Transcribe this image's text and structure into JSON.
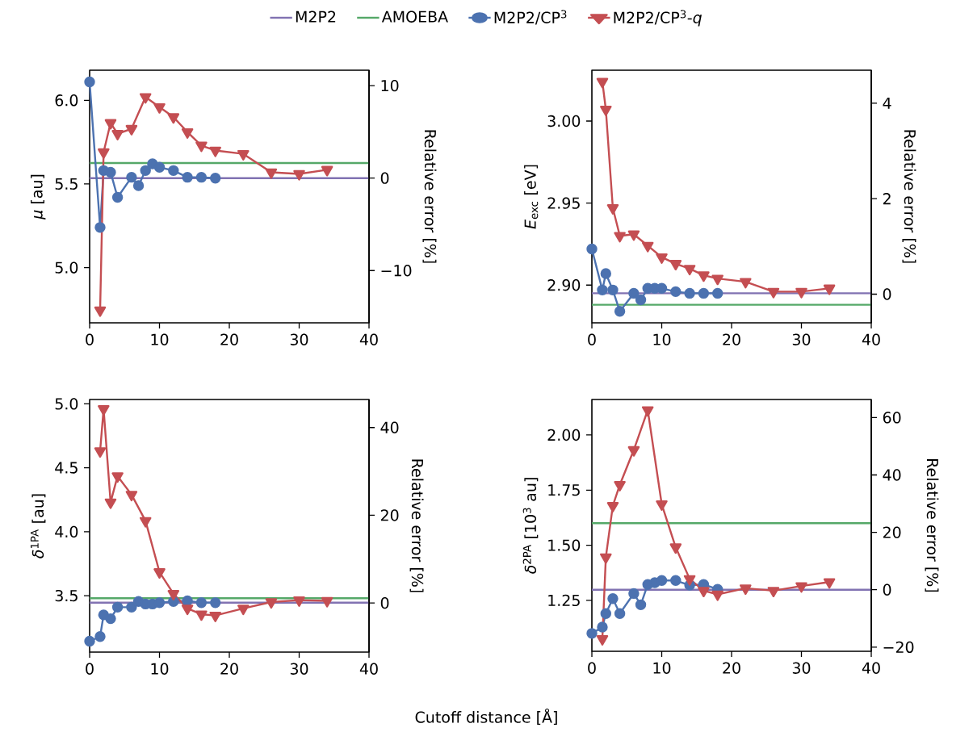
{
  "chart_data": [
    {
      "type": "line",
      "ylabel": "*μ* [au]",
      "y2label": "Relative error [%]",
      "legend": "top",
      "xlim": [
        0,
        40
      ],
      "xticks": [
        0,
        10,
        20,
        30,
        40
      ],
      "ylim": [
        4.67,
        6.18
      ],
      "yticks": [
        {
          "value": 5.0,
          "label": "5.0"
        },
        {
          "value": 5.5,
          "label": "5.5"
        },
        {
          "value": 6.0,
          "label": "6.0"
        }
      ],
      "y2lim": [
        -15.65,
        11.67
      ],
      "y2ticks": [
        {
          "value": -10,
          "label": "−10"
        },
        0,
        10
      ],
      "series": [
        {
          "name": "M2P2",
          "color": "#8172b2",
          "marker": "none",
          "x": [
            0,
            40
          ],
          "values": [
            5.535,
            5.535
          ]
        },
        {
          "name": "AMOEBA",
          "color": "#55a868",
          "marker": "none",
          "x": [
            0,
            40
          ],
          "values": [
            5.625,
            5.625
          ]
        },
        {
          "name": "M2P2/CP$^{3}$",
          "color": "#4c72b0",
          "marker": "circle",
          "x": [
            0,
            1.5,
            2,
            3,
            4,
            6,
            7,
            8,
            9,
            10,
            12,
            14,
            16,
            18
          ],
          "values": [
            6.11,
            5.24,
            5.58,
            5.57,
            5.42,
            5.54,
            5.49,
            5.58,
            5.62,
            5.6,
            5.58,
            5.54,
            5.54,
            5.535
          ]
        },
        {
          "name": "M2P2/CP$^{3}$-*q*",
          "color": "#c44e52",
          "marker": "triangle",
          "x": [
            1.5,
            2,
            3,
            4,
            6,
            8,
            10,
            12,
            14,
            16,
            18,
            22,
            26,
            30,
            34
          ],
          "values": [
            4.745,
            5.69,
            5.865,
            5.8,
            5.83,
            6.02,
            5.96,
            5.9,
            5.81,
            5.73,
            5.7,
            5.68,
            5.57,
            5.56,
            5.585
          ]
        }
      ]
    },
    {
      "type": "line",
      "ylabel": "*E*$_{exc}$ [eV]",
      "y2label": "Relative error [%]",
      "xlim": [
        0,
        40
      ],
      "xticks": [
        0,
        10,
        20,
        30,
        40
      ],
      "ylim": [
        2.877,
        3.031
      ],
      "yticks": [
        {
          "value": 2.9,
          "label": "2.90"
        },
        {
          "value": 2.95,
          "label": "2.95"
        },
        {
          "value": 3.0,
          "label": "3.00"
        }
      ],
      "y2lim": [
        -0.6,
        4.69
      ],
      "y2ticks": [
        0,
        2,
        4
      ],
      "series": [
        {
          "color": "#8172b2",
          "marker": "none",
          "x": [
            0,
            40
          ],
          "values": [
            2.895,
            2.895
          ]
        },
        {
          "color": "#55a868",
          "marker": "none",
          "x": [
            0,
            40
          ],
          "values": [
            2.888,
            2.888
          ]
        },
        {
          "color": "#4c72b0",
          "marker": "circle",
          "x": [
            0,
            1.5,
            2,
            3,
            4,
            6,
            7,
            8,
            9,
            10,
            12,
            14,
            16,
            18
          ],
          "values": [
            2.922,
            2.897,
            2.907,
            2.897,
            2.884,
            2.895,
            2.891,
            2.898,
            2.898,
            2.898,
            2.896,
            2.895,
            2.895,
            2.895
          ]
        },
        {
          "color": "#c44e52",
          "marker": "triangle",
          "x": [
            1.5,
            2,
            3,
            4,
            6,
            8,
            10,
            12,
            14,
            16,
            18,
            22,
            26,
            30,
            34
          ],
          "values": [
            3.024,
            3.007,
            2.947,
            2.93,
            2.931,
            2.924,
            2.917,
            2.913,
            2.91,
            2.906,
            2.904,
            2.902,
            2.896,
            2.896,
            2.898
          ]
        }
      ]
    },
    {
      "type": "line",
      "ylabel": "*δ*$^{1PA}$ [au]",
      "y2label": "Relative error [%]",
      "xlabel": "Cutoff distance [Å]",
      "xlim": [
        0,
        40
      ],
      "xticks": [
        0,
        10,
        20,
        30,
        40
      ],
      "ylim": [
        3.059,
        5.034
      ],
      "yticks": [
        {
          "value": 3.5,
          "label": "3.5"
        },
        {
          "value": 4.0,
          "label": "4.0"
        },
        {
          "value": 4.5,
          "label": "4.5"
        },
        {
          "value": 5.0,
          "label": "5.0"
        }
      ],
      "y2lim": [
        -11.2,
        46.4
      ],
      "y2ticks": [
        0,
        20,
        40
      ],
      "series": [
        {
          "color": "#8172b2",
          "marker": "none",
          "x": [
            0,
            40
          ],
          "values": [
            3.445,
            3.445
          ]
        },
        {
          "color": "#55a868",
          "marker": "none",
          "x": [
            0,
            40
          ],
          "values": [
            3.48,
            3.48
          ]
        },
        {
          "color": "#4c72b0",
          "marker": "circle",
          "x": [
            0,
            1.5,
            2,
            3,
            4,
            6,
            7,
            8,
            9,
            10,
            12,
            14,
            16,
            18
          ],
          "values": [
            3.144,
            3.18,
            3.35,
            3.32,
            3.41,
            3.41,
            3.455,
            3.435,
            3.435,
            3.445,
            3.455,
            3.46,
            3.445,
            3.445
          ]
        },
        {
          "color": "#c44e52",
          "marker": "triangle",
          "x": [
            1.5,
            2,
            3,
            4,
            6,
            8,
            10,
            12,
            14,
            16,
            18,
            22,
            26,
            30,
            34
          ],
          "values": [
            4.63,
            4.96,
            4.23,
            4.435,
            4.29,
            4.085,
            3.685,
            3.515,
            3.4,
            3.355,
            3.345,
            3.4,
            3.45,
            3.465,
            3.46
          ]
        }
      ]
    },
    {
      "type": "line",
      "ylabel": "*δ*$^{2PA}$ [10$^{3}$ au]",
      "y2label": "Relative error [%]",
      "xlim": [
        0,
        40
      ],
      "xticks": [
        0,
        10,
        20,
        30,
        40
      ],
      "ylim": [
        1.019,
        2.161
      ],
      "yticks": [
        {
          "value": 1.25,
          "label": "1.25"
        },
        {
          "value": 1.5,
          "label": "1.50"
        },
        {
          "value": 1.75,
          "label": "1.75"
        },
        {
          "value": 2.0,
          "label": "2.00"
        }
      ],
      "y2lim": [
        -21.45,
        66.3
      ],
      "y2ticks": [
        {
          "value": -20,
          "label": "−20"
        },
        0,
        20,
        40,
        60
      ],
      "series": [
        {
          "color": "#8172b2",
          "marker": "none",
          "x": [
            0,
            40
          ],
          "values": [
            1.298,
            1.298
          ]
        },
        {
          "color": "#55a868",
          "marker": "none",
          "x": [
            0,
            40
          ],
          "values": [
            1.6,
            1.6
          ]
        },
        {
          "color": "#4c72b0",
          "marker": "circle",
          "x": [
            0,
            1.5,
            2,
            3,
            4,
            6,
            7,
            8,
            9,
            10,
            12,
            14,
            16,
            18
          ],
          "values": [
            1.1,
            1.129,
            1.19,
            1.258,
            1.19,
            1.281,
            1.23,
            1.322,
            1.33,
            1.34,
            1.34,
            1.319,
            1.322,
            1.3
          ]
        },
        {
          "color": "#c44e52",
          "marker": "triangle",
          "x": [
            1.5,
            2,
            3,
            4,
            6,
            8,
            10,
            12,
            14,
            16,
            18,
            22,
            26,
            30,
            34
          ],
          "values": [
            1.075,
            1.446,
            1.679,
            1.774,
            1.932,
            2.113,
            1.686,
            1.491,
            1.347,
            1.294,
            1.277,
            1.305,
            1.294,
            1.315,
            1.333
          ]
        }
      ]
    }
  ]
}
